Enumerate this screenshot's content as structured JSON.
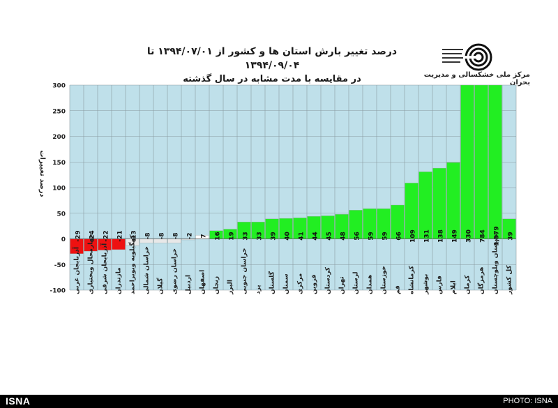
{
  "header": {
    "title_line1": "درصد تغییر بارش استان ها و کشور از ۱۳۹۴/۰۷/۰۱ تا ۱۳۹۴/۰۹/۰۴",
    "title_line2": "در مقایسه با مدت مشابه در سال گذشته",
    "org_name": "مرکز ملی خشکسالی و مدیریت بحران"
  },
  "footer": {
    "brand": "ISNA",
    "credit": "PHOTO: ISNA"
  },
  "chart_data": {
    "type": "bar",
    "ylabel": "درصد تغییرات",
    "ylim": [
      -100,
      300
    ],
    "yticks": [
      300,
      250,
      200,
      150,
      100,
      50,
      0,
      -50,
      -100
    ],
    "grid": true,
    "categories": [
      "آذربایجان غربی",
      "چهارمحال وبختیاری",
      "آذربایجان شرقی",
      "مازندران",
      "کهگیلویه وبویراحمد",
      "خراسان شمالی",
      "گیلان",
      "خراسان رضوی",
      "اردبیل",
      "اصفهان",
      "زنجان",
      "البرز",
      "خراسان جنوبی",
      "یزد",
      "گلستان",
      "سمنان",
      "مرکزی",
      "قزوین",
      "کردستان",
      "تهران",
      "لرستان",
      "همدان",
      "خوزستان",
      "قم",
      "کرمانشاه",
      "بوشهر",
      "فارس",
      "ایلام",
      "کرمان",
      "هرمزگان",
      "سیستان وبلوچستان",
      "کل کشور"
    ],
    "values": [
      -29,
      -24,
      -22,
      -21,
      -13,
      -8,
      -8,
      -8,
      -2,
      7,
      16,
      19,
      33,
      33,
      39,
      40,
      41,
      44,
      45,
      48,
      56,
      59,
      59,
      66,
      109,
      131,
      138,
      149,
      330,
      784,
      1579,
      39
    ],
    "value_labels": [
      "-29",
      "-24",
      "-22",
      "-21",
      "-13",
      "-8",
      "-8",
      "-8",
      "-2",
      "7",
      "16",
      "19",
      "33",
      "33",
      "39",
      "40",
      "41",
      "44",
      "45",
      "48",
      "56",
      "59",
      "59",
      "66",
      "109",
      "131",
      "138",
      "149",
      "330",
      "784",
      "1,579",
      "39"
    ],
    "colors": {
      "plot_bg": "#bfe0ea",
      "grid": "#8a9aa0",
      "negative_strong": "#ee1111",
      "negative_weak": "#e8e8e8",
      "positive_weak": "#ffffff",
      "positive": "#22ee22",
      "axis_text": "#222222"
    }
  }
}
